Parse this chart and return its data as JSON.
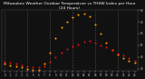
{
  "title": "Milwaukee Weather Outdoor Temperature vs THSW Index per Hour (24 Hours)",
  "title_fontsize": 3.2,
  "bg_color": "#111111",
  "plot_bg_color": "#111111",
  "grid_color": "#555555",
  "hours": [
    0,
    1,
    2,
    3,
    4,
    5,
    6,
    7,
    8,
    9,
    10,
    11,
    12,
    13,
    14,
    15,
    16,
    17,
    18,
    19,
    20,
    21,
    22,
    23
  ],
  "temp": [
    36,
    35,
    34,
    33,
    32,
    31,
    31,
    32,
    36,
    40,
    44,
    47,
    49,
    51,
    53,
    54,
    52,
    50,
    48,
    46,
    43,
    41,
    39,
    37
  ],
  "thsw": [
    34,
    33,
    32,
    31,
    30,
    29,
    29,
    34,
    44,
    56,
    65,
    70,
    74,
    76,
    77,
    75,
    68,
    60,
    52,
    46,
    42,
    39,
    37,
    35
  ],
  "temp_color": "#dd1111",
  "thsw_color": "#ff9900",
  "black_dot_color": "#222222",
  "marker_size": 1.5,
  "ylim": [
    28,
    80
  ],
  "xlim": [
    -0.5,
    23.5
  ],
  "ytick_right_values": [
    30,
    40,
    50,
    60,
    70,
    80
  ],
  "ytick_right_labels": [
    "30",
    "40",
    "50",
    "60",
    "70",
    "80"
  ],
  "xtick_labels": [
    "0",
    "1",
    "2",
    "3",
    "4",
    "5",
    "6",
    "7",
    "8",
    "9",
    "10",
    "11",
    "12",
    "13",
    "14",
    "15",
    "16",
    "17",
    "18",
    "19",
    "20",
    "21",
    "22",
    "23"
  ]
}
